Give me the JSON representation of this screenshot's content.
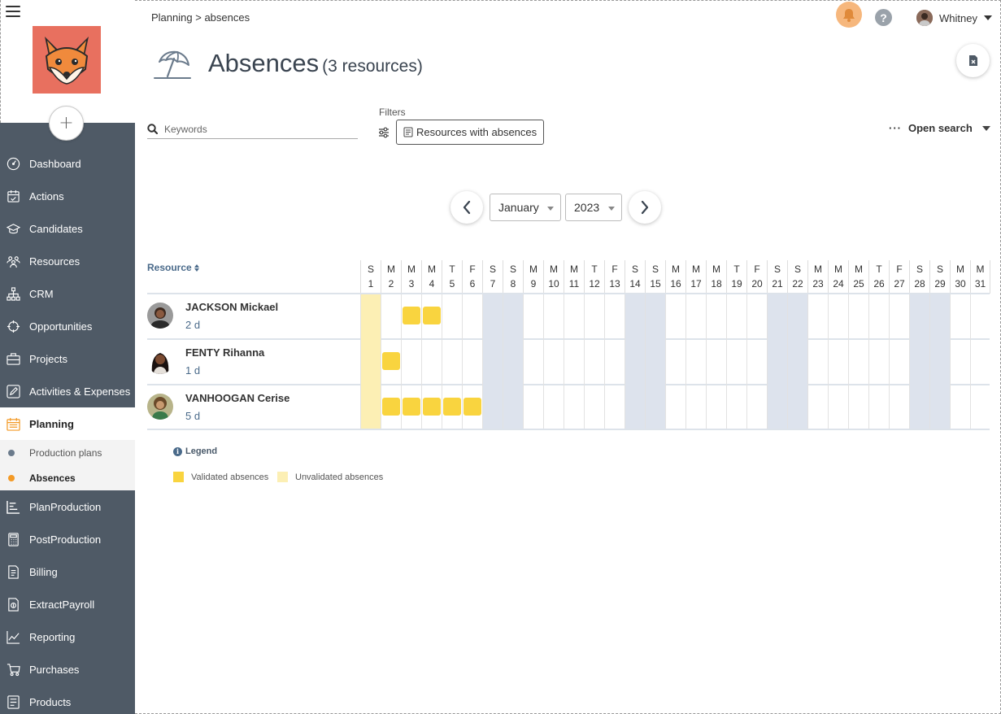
{
  "sidebar": {
    "add_label": "+",
    "items": [
      {
        "label": "Dashboard",
        "icon": "dashboard-icon"
      },
      {
        "label": "Actions",
        "icon": "actions-icon"
      },
      {
        "label": "Candidates",
        "icon": "graduation-cap-icon"
      },
      {
        "label": "Resources",
        "icon": "people-icon"
      },
      {
        "label": "CRM",
        "icon": "org-chart-icon"
      },
      {
        "label": "Opportunities",
        "icon": "crosshair-icon"
      },
      {
        "label": "Projects",
        "icon": "briefcase-icon"
      },
      {
        "label": "Activities & Expenses",
        "icon": "pencil-icon"
      },
      {
        "label": "Planning",
        "icon": "calendar-icon",
        "active": true
      },
      {
        "label": "PlanProduction",
        "icon": "gantt-icon"
      },
      {
        "label": "PostProduction",
        "icon": "calculator-icon"
      },
      {
        "label": "Billing",
        "icon": "invoice-icon"
      },
      {
        "label": "ExtractPayroll",
        "icon": "payroll-icon"
      },
      {
        "label": "Reporting",
        "icon": "line-chart-icon"
      },
      {
        "label": "Purchases",
        "icon": "cart-icon"
      },
      {
        "label": "Products",
        "icon": "catalog-icon"
      }
    ],
    "subitems": [
      {
        "label": "Production plans"
      },
      {
        "label": "Absences",
        "active": true
      }
    ]
  },
  "header": {
    "breadcrumb": [
      "Planning",
      ">",
      "absences"
    ],
    "user": "Whitney",
    "help": "?"
  },
  "page": {
    "title": "Absences",
    "subtitle": "(3 resources)"
  },
  "filters": {
    "search_placeholder": "Keywords",
    "label": "Filters",
    "chip": "Resources with absences",
    "open_search": "Open search"
  },
  "period": {
    "month": "January",
    "year": "2023"
  },
  "grid": {
    "resource_header": "Resource",
    "days": [
      {
        "l": "S",
        "n": "1"
      },
      {
        "l": "M",
        "n": "2"
      },
      {
        "l": "M",
        "n": "3"
      },
      {
        "l": "M",
        "n": "4"
      },
      {
        "l": "T",
        "n": "5"
      },
      {
        "l": "F",
        "n": "6"
      },
      {
        "l": "S",
        "n": "7"
      },
      {
        "l": "S",
        "n": "8"
      },
      {
        "l": "M",
        "n": "9"
      },
      {
        "l": "M",
        "n": "10"
      },
      {
        "l": "M",
        "n": "11"
      },
      {
        "l": "T",
        "n": "12"
      },
      {
        "l": "F",
        "n": "13"
      },
      {
        "l": "S",
        "n": "14"
      },
      {
        "l": "S",
        "n": "15"
      },
      {
        "l": "M",
        "n": "16"
      },
      {
        "l": "M",
        "n": "17"
      },
      {
        "l": "M",
        "n": "18"
      },
      {
        "l": "T",
        "n": "19"
      },
      {
        "l": "F",
        "n": "20"
      },
      {
        "l": "S",
        "n": "21"
      },
      {
        "l": "S",
        "n": "22"
      },
      {
        "l": "M",
        "n": "23"
      },
      {
        "l": "M",
        "n": "24"
      },
      {
        "l": "M",
        "n": "25"
      },
      {
        "l": "T",
        "n": "26"
      },
      {
        "l": "F",
        "n": "27"
      },
      {
        "l": "S",
        "n": "28"
      },
      {
        "l": "S",
        "n": "29"
      },
      {
        "l": "M",
        "n": "30"
      },
      {
        "l": "M",
        "n": "31"
      }
    ],
    "weekend_days": [
      7,
      8,
      14,
      15,
      21,
      22,
      28,
      29
    ],
    "highlight_day": 1,
    "resources": [
      {
        "name": "JACKSON Mickael",
        "days": "2 d",
        "absences": [
          3,
          4
        ]
      },
      {
        "name": "FENTY Rihanna",
        "days": "1 d",
        "absences": [
          2
        ]
      },
      {
        "name": "VANHOOGAN Cerise",
        "days": "5 d",
        "absences": [
          2,
          3,
          4,
          5,
          6
        ]
      }
    ]
  },
  "legend": {
    "title": "Legend",
    "validated": "Validated absences",
    "unvalidated": "Unvalidated absences",
    "validated_color": "#f9d43f",
    "unvalidated_color": "#fcefb4"
  }
}
